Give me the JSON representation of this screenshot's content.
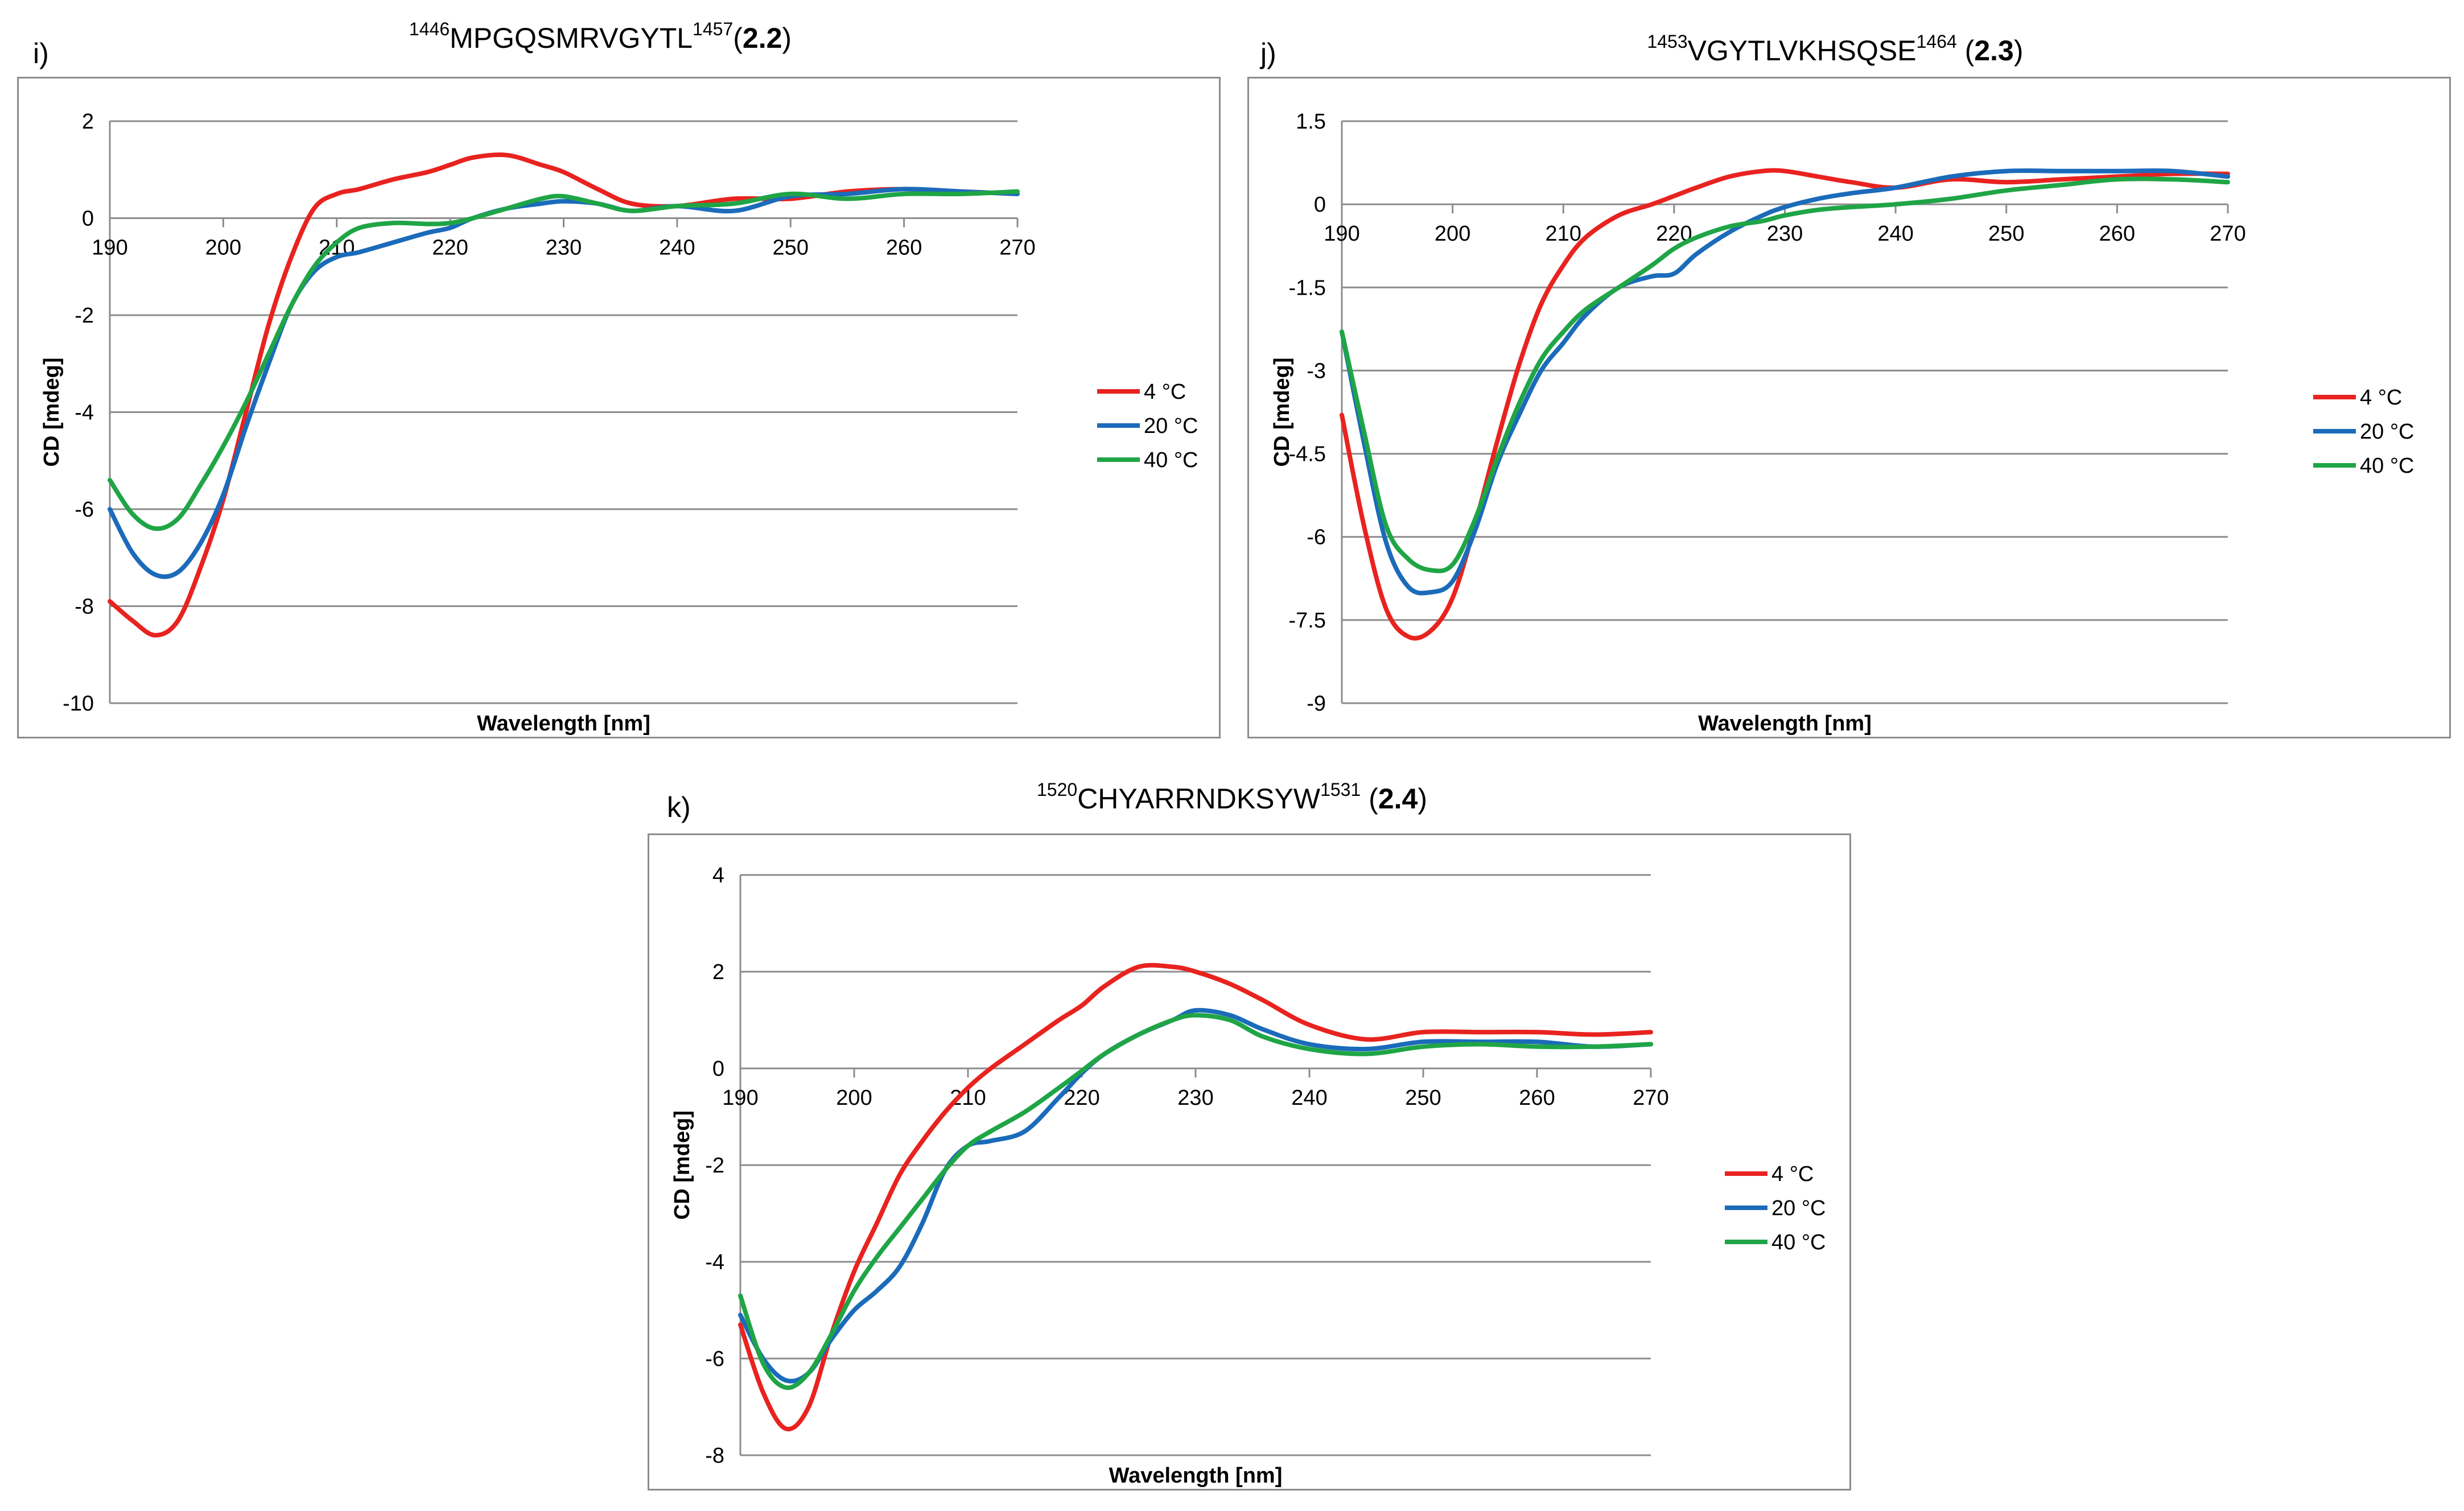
{
  "chart_data": [
    {
      "type": "line",
      "panel_label": "i)",
      "title": {
        "start_num": "1446",
        "seq": "MPGQSMRVGYTL",
        "end_num": "1457",
        "compound": "2.2"
      },
      "xlabel": "Wavelength [nm]",
      "ylabel": "CD [mdeg]",
      "xlim": [
        190,
        270
      ],
      "ylim": [
        -10,
        2
      ],
      "xticks": [
        190,
        200,
        210,
        220,
        230,
        240,
        250,
        260,
        270
      ],
      "yticks": [
        2,
        0,
        -2,
        -4,
        -6,
        -8,
        -10
      ],
      "ytick_labels": [
        "2",
        "0",
        "-2",
        "-4",
        "-6",
        "-8",
        "-10"
      ],
      "grid": true,
      "legend_position": "right",
      "series": [
        {
          "name": "4 °C",
          "color": "#e8231f",
          "x": [
            190,
            192,
            194,
            196,
            198,
            200,
            202,
            204,
            206,
            208,
            210,
            212,
            215,
            218,
            220,
            222,
            225,
            228,
            230,
            233,
            236,
            240,
            245,
            250,
            255,
            260,
            265,
            270
          ],
          "y": [
            -7.9,
            -8.3,
            -8.6,
            -8.3,
            -7.2,
            -5.8,
            -4.0,
            -2.2,
            -0.8,
            0.2,
            0.5,
            0.6,
            0.8,
            0.95,
            1.1,
            1.25,
            1.3,
            1.1,
            0.95,
            0.6,
            0.3,
            0.25,
            0.4,
            0.4,
            0.55,
            0.6,
            0.55,
            0.5
          ]
        },
        {
          "name": "20 °C",
          "color": "#1b6bba",
          "x": [
            190,
            192,
            194,
            196,
            198,
            200,
            202,
            204,
            206,
            208,
            210,
            212,
            215,
            218,
            220,
            222,
            225,
            228,
            230,
            233,
            236,
            240,
            245,
            250,
            255,
            260,
            265,
            270
          ],
          "y": [
            -6.0,
            -6.9,
            -7.35,
            -7.3,
            -6.7,
            -5.7,
            -4.3,
            -3.0,
            -1.8,
            -1.1,
            -0.8,
            -0.7,
            -0.5,
            -0.3,
            -0.2,
            0.0,
            0.2,
            0.3,
            0.35,
            0.3,
            0.15,
            0.25,
            0.15,
            0.45,
            0.5,
            0.6,
            0.55,
            0.5
          ]
        },
        {
          "name": "40 °C",
          "color": "#1fa546",
          "x": [
            190,
            192,
            194,
            196,
            198,
            200,
            202,
            204,
            206,
            208,
            210,
            212,
            215,
            218,
            220,
            222,
            225,
            228,
            230,
            233,
            236,
            240,
            245,
            250,
            255,
            260,
            265,
            270
          ],
          "y": [
            -5.4,
            -6.1,
            -6.4,
            -6.2,
            -5.5,
            -4.7,
            -3.8,
            -2.8,
            -1.8,
            -1.0,
            -0.5,
            -0.2,
            -0.1,
            -0.12,
            -0.1,
            0.0,
            0.2,
            0.4,
            0.45,
            0.3,
            0.15,
            0.25,
            0.3,
            0.5,
            0.4,
            0.5,
            0.5,
            0.55
          ]
        }
      ]
    },
    {
      "type": "line",
      "panel_label": "j)",
      "title": {
        "start_num": "1453",
        "seq": "VGYTLVKHSQSE",
        "end_num": "1464",
        "compound": "2.3"
      },
      "xlabel": "Wavelength [nm]",
      "ylabel": "CD [mdeg]",
      "xlim": [
        190,
        270
      ],
      "ylim": [
        -9,
        1.5
      ],
      "xticks": [
        190,
        200,
        210,
        220,
        230,
        240,
        250,
        260,
        270
      ],
      "yticks": [
        1.5,
        0,
        -1.5,
        -3,
        -4.5,
        -6,
        -7.5,
        -9
      ],
      "ytick_labels": [
        "1.5",
        "0",
        "-1.5",
        "-3",
        "-4.5",
        "-6",
        "-7.5",
        "-9"
      ],
      "grid": true,
      "legend_position": "right",
      "series": [
        {
          "name": "4 °C",
          "color": "#e8231f",
          "x": [
            190,
            192,
            194,
            196,
            198,
            200,
            202,
            204,
            206,
            208,
            210,
            212,
            215,
            218,
            220,
            222,
            225,
            228,
            230,
            233,
            236,
            240,
            245,
            250,
            255,
            260,
            265,
            270
          ],
          "y": [
            -3.8,
            -5.8,
            -7.3,
            -7.8,
            -7.7,
            -7.1,
            -5.8,
            -4.3,
            -2.9,
            -1.8,
            -1.1,
            -0.6,
            -0.2,
            0.0,
            0.15,
            0.3,
            0.5,
            0.6,
            0.6,
            0.5,
            0.4,
            0.3,
            0.45,
            0.4,
            0.45,
            0.5,
            0.55,
            0.55
          ]
        },
        {
          "name": "20 °C",
          "color": "#1b6bba",
          "x": [
            190,
            192,
            194,
            196,
            198,
            200,
            202,
            204,
            206,
            208,
            210,
            212,
            215,
            218,
            220,
            222,
            225,
            228,
            230,
            233,
            236,
            240,
            245,
            250,
            255,
            260,
            265,
            270
          ],
          "y": [
            -2.3,
            -4.3,
            -6.1,
            -6.9,
            -7.0,
            -6.8,
            -5.9,
            -4.7,
            -3.8,
            -3.0,
            -2.5,
            -2.0,
            -1.5,
            -1.3,
            -1.25,
            -0.9,
            -0.5,
            -0.2,
            -0.05,
            0.1,
            0.2,
            0.3,
            0.5,
            0.6,
            0.6,
            0.6,
            0.6,
            0.5
          ]
        },
        {
          "name": "40 °C",
          "color": "#1fa546",
          "x": [
            190,
            192,
            194,
            196,
            198,
            200,
            202,
            204,
            206,
            208,
            210,
            212,
            215,
            218,
            220,
            222,
            225,
            228,
            230,
            233,
            236,
            240,
            245,
            250,
            255,
            260,
            265,
            270
          ],
          "y": [
            -2.3,
            -4.1,
            -5.8,
            -6.4,
            -6.6,
            -6.5,
            -5.7,
            -4.6,
            -3.6,
            -2.8,
            -2.3,
            -1.9,
            -1.5,
            -1.1,
            -0.8,
            -0.6,
            -0.4,
            -0.3,
            -0.2,
            -0.1,
            -0.05,
            0.0,
            0.1,
            0.25,
            0.35,
            0.45,
            0.45,
            0.4
          ]
        }
      ]
    },
    {
      "type": "line",
      "panel_label": "k)",
      "title": {
        "start_num": "1520",
        "seq": "CHYARRNDKSYW",
        "end_num": "1531",
        "compound": "2.4"
      },
      "xlabel": "Wavelength [nm]",
      "ylabel": "CD [mdeg]",
      "xlim": [
        190,
        270
      ],
      "ylim": [
        -8,
        4
      ],
      "xticks": [
        190,
        200,
        210,
        220,
        230,
        240,
        250,
        260,
        270
      ],
      "yticks": [
        4,
        2,
        0,
        -2,
        -4,
        -6,
        -8
      ],
      "ytick_labels": [
        "4",
        "2",
        "0",
        "-2",
        "-4",
        "-6",
        "-8"
      ],
      "grid": true,
      "legend_position": "right",
      "series": [
        {
          "name": "4 °C",
          "color": "#e8231f",
          "x": [
            190,
            192,
            194,
            196,
            198,
            200,
            202,
            204,
            206,
            208,
            210,
            212,
            215,
            218,
            220,
            222,
            225,
            228,
            230,
            233,
            236,
            240,
            245,
            250,
            255,
            260,
            265,
            270
          ],
          "y": [
            -5.3,
            -6.7,
            -7.45,
            -7.0,
            -5.5,
            -4.2,
            -3.2,
            -2.2,
            -1.5,
            -0.9,
            -0.4,
            0.0,
            0.5,
            1.0,
            1.3,
            1.7,
            2.1,
            2.1,
            2.0,
            1.75,
            1.4,
            0.9,
            0.6,
            0.75,
            0.75,
            0.75,
            0.7,
            0.75
          ]
        },
        {
          "name": "20 °C",
          "color": "#1b6bba",
          "x": [
            190,
            192,
            194,
            196,
            198,
            200,
            202,
            204,
            206,
            208,
            210,
            212,
            215,
            218,
            220,
            222,
            225,
            228,
            230,
            233,
            236,
            240,
            245,
            250,
            255,
            260,
            265,
            270
          ],
          "y": [
            -5.1,
            -6.0,
            -6.45,
            -6.3,
            -5.6,
            -5.0,
            -4.6,
            -4.1,
            -3.2,
            -2.1,
            -1.6,
            -1.5,
            -1.3,
            -0.6,
            -0.1,
            0.3,
            0.7,
            1.0,
            1.2,
            1.1,
            0.8,
            0.5,
            0.4,
            0.55,
            0.55,
            0.55,
            0.45,
            0.5
          ]
        },
        {
          "name": "40 °C",
          "color": "#1fa546",
          "x": [
            190,
            192,
            194,
            196,
            198,
            200,
            202,
            204,
            206,
            208,
            210,
            212,
            215,
            218,
            220,
            222,
            225,
            228,
            230,
            233,
            236,
            240,
            245,
            250,
            255,
            260,
            265,
            270
          ],
          "y": [
            -4.7,
            -6.1,
            -6.6,
            -6.3,
            -5.5,
            -4.6,
            -3.9,
            -3.3,
            -2.7,
            -2.1,
            -1.6,
            -1.3,
            -0.9,
            -0.4,
            -0.05,
            0.3,
            0.7,
            1.0,
            1.1,
            1.0,
            0.65,
            0.4,
            0.3,
            0.45,
            0.5,
            0.45,
            0.45,
            0.5
          ]
        }
      ]
    }
  ]
}
